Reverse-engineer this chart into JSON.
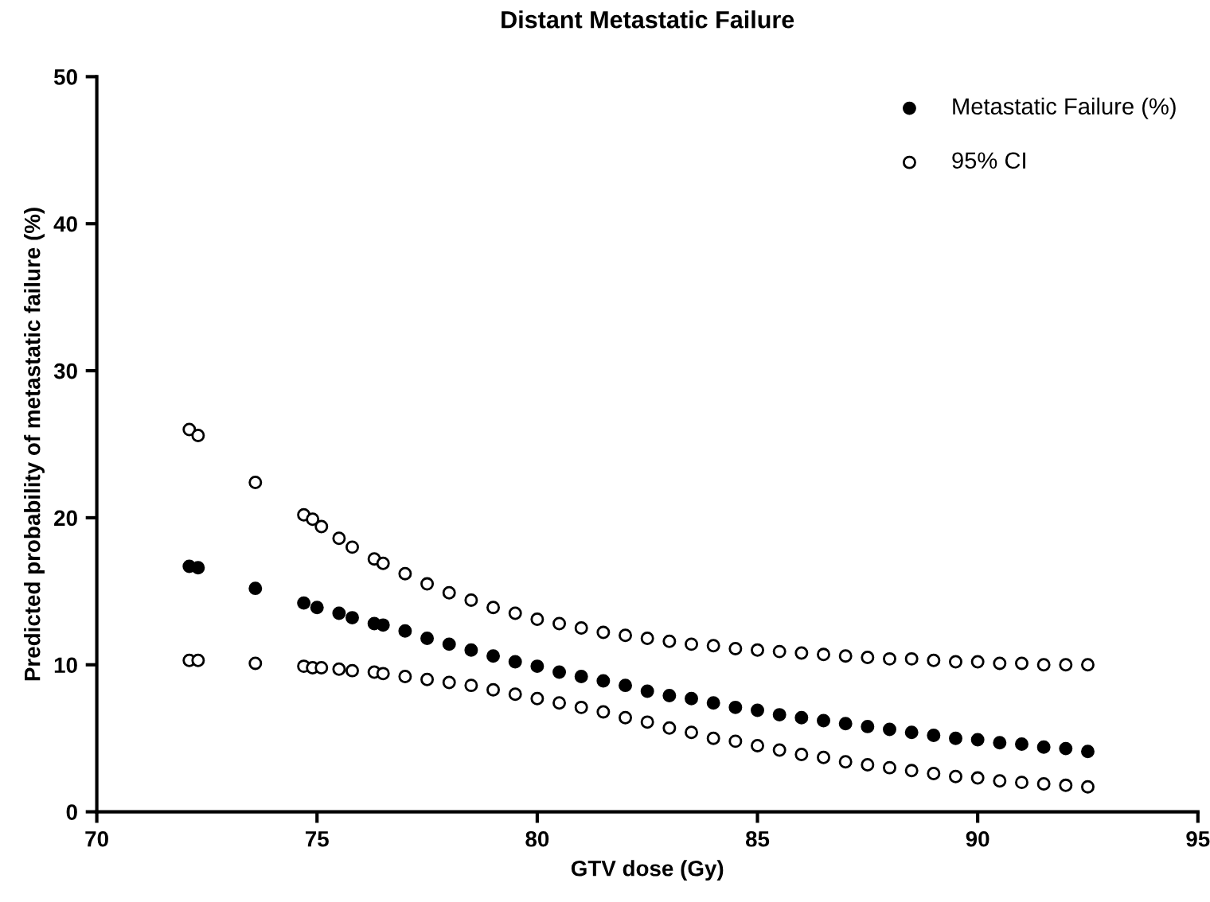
{
  "chart_data": {
    "type": "scatter",
    "title": "Distant Metastatic Failure",
    "xlabel": "GTV dose (Gy)",
    "ylabel": "Predicted probability of metastatic failure (%)",
    "xlim": [
      70,
      95
    ],
    "xticks": [
      70,
      75,
      80,
      85,
      90,
      95
    ],
    "ylim": [
      0,
      50
    ],
    "yticks": [
      0,
      10,
      20,
      30,
      40,
      50
    ],
    "grid": false,
    "legend": "top right",
    "marker": "circle",
    "series": [
      {
        "name": "Metastatic Failure (%)",
        "color": "#000000",
        "x": [
          72.1,
          72.3,
          73.6,
          74.7,
          75.0,
          75.5,
          75.8,
          76.3,
          76.5,
          77,
          77.5,
          78,
          78.5,
          79,
          79.5,
          80,
          80.5,
          81,
          81.5,
          82,
          82.5,
          83,
          83.5,
          84,
          84.5,
          85,
          85.5,
          86,
          86.5,
          87,
          87.5,
          88,
          88.5,
          89,
          89.5,
          90,
          90.5,
          91,
          91.5,
          92,
          92.5
        ],
        "values": [
          16.7,
          16.6,
          15.2,
          14.2,
          13.9,
          13.5,
          13.2,
          12.8,
          12.7,
          12.3,
          11.8,
          11.4,
          11.0,
          10.6,
          10.2,
          9.9,
          9.5,
          9.2,
          8.9,
          8.6,
          8.2,
          7.9,
          7.7,
          7.4,
          7.1,
          6.9,
          6.6,
          6.4,
          6.2,
          6.0,
          5.8,
          5.6,
          5.4,
          5.2,
          5.0,
          4.9,
          4.7,
          4.6,
          4.4,
          4.3,
          4.1
        ]
      },
      {
        "name": "95% CI",
        "color": "#ffffff",
        "x": [
          72.1,
          72.3,
          73.6,
          74.7,
          74.9,
          75.1,
          75.5,
          75.8,
          76.3,
          76.5,
          77,
          77.5,
          78,
          78.5,
          79,
          79.5,
          80,
          80.5,
          81,
          81.5,
          82,
          82.5,
          83,
          83.5,
          84,
          84.5,
          85,
          85.5,
          86,
          86.5,
          87,
          87.5,
          88,
          88.5,
          89,
          89.5,
          90,
          90.5,
          91,
          91.5,
          92,
          92.5,
          72.1,
          72.3,
          73.6,
          74.7,
          74.9,
          75.1,
          75.5,
          75.8,
          76.3,
          76.5,
          77,
          77.5,
          78,
          78.5,
          79,
          79.5,
          80,
          80.5,
          81,
          81.5,
          82,
          82.5,
          83,
          83.5,
          84,
          84.5,
          85,
          85.5,
          86,
          86.5,
          87,
          87.5,
          88,
          88.5,
          89,
          89.5,
          90,
          90.5,
          91,
          91.5,
          92,
          92.5
        ],
        "values": [
          26.0,
          25.6,
          22.4,
          20.2,
          19.9,
          19.4,
          18.6,
          18.0,
          17.2,
          16.9,
          16.2,
          15.5,
          14.9,
          14.4,
          13.9,
          13.5,
          13.1,
          12.8,
          12.5,
          12.2,
          12.0,
          11.8,
          11.6,
          11.4,
          11.3,
          11.1,
          11.0,
          10.9,
          10.8,
          10.7,
          10.6,
          10.5,
          10.4,
          10.4,
          10.3,
          10.2,
          10.2,
          10.1,
          10.1,
          10.0,
          10.0,
          10.0,
          10.3,
          10.3,
          10.1,
          9.9,
          9.8,
          9.8,
          9.7,
          9.6,
          9.5,
          9.4,
          9.2,
          9.0,
          8.8,
          8.6,
          8.3,
          8.0,
          7.7,
          7.4,
          7.1,
          6.8,
          6.4,
          6.1,
          5.7,
          5.4,
          5.0,
          4.8,
          4.5,
          4.2,
          3.9,
          3.7,
          3.4,
          3.2,
          3.0,
          2.8,
          2.6,
          2.4,
          2.3,
          2.1,
          2.0,
          1.9,
          1.8,
          1.7
        ]
      }
    ]
  }
}
